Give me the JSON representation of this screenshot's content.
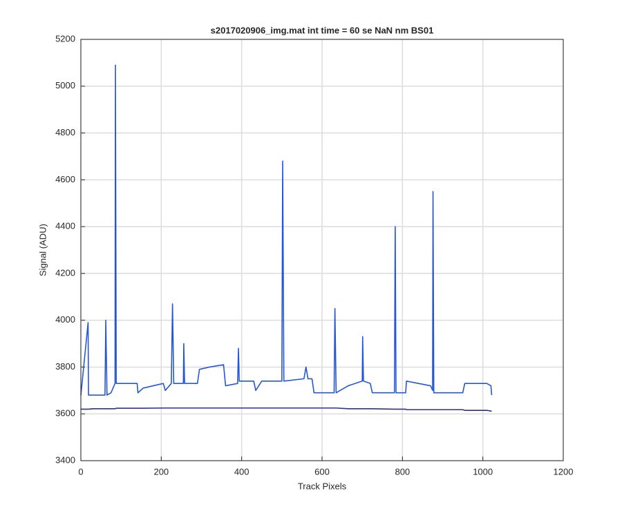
{
  "chart_data": {
    "type": "line",
    "title": "s2017020906_img.mat int time = 60 se  NaN nm BS01",
    "x_label": "Track Pixels",
    "y_label": "Signal (ADU)",
    "x": [
      0,
      18,
      19,
      30,
      60,
      62,
      65,
      75,
      85,
      86,
      88,
      140,
      142,
      155,
      205,
      210,
      225,
      228,
      231,
      255,
      256,
      258,
      290,
      295,
      320,
      355,
      360,
      390,
      392,
      394,
      430,
      435,
      450,
      500,
      502,
      505,
      555,
      560,
      565,
      575,
      580,
      630,
      632,
      635,
      665,
      700,
      701,
      703,
      720,
      725,
      780,
      782,
      784,
      808,
      810,
      870,
      875,
      876,
      878,
      950,
      955,
      1010,
      1020,
      1022
    ],
    "series": [
      {
        "color": "#2457d6",
        "values": [
          3680,
          3990,
          3680,
          3680,
          3680,
          4000,
          3680,
          3690,
          3730,
          5090,
          3730,
          3730,
          3690,
          3710,
          3730,
          3700,
          3730,
          4070,
          3730,
          3730,
          3900,
          3730,
          3730,
          3790,
          3800,
          3810,
          3720,
          3730,
          3880,
          3740,
          3740,
          3700,
          3740,
          3740,
          4680,
          3740,
          3750,
          3800,
          3750,
          3750,
          3690,
          3690,
          4050,
          3690,
          3720,
          3740,
          3930,
          3740,
          3730,
          3690,
          3690,
          4400,
          3690,
          3690,
          3740,
          3720,
          3700,
          4550,
          3690,
          3690,
          3730,
          3730,
          3720,
          3680
        ]
      },
      {
        "color": "#2b2f8f",
        "values": [
          3620,
          3620,
          3620,
          3622,
          3622,
          3622,
          3622,
          3622,
          3622,
          3622,
          3624,
          3624,
          3624,
          3624,
          3625,
          3625,
          3625,
          3625,
          3625,
          3625,
          3625,
          3625,
          3625,
          3625,
          3625,
          3625,
          3625,
          3625,
          3625,
          3625,
          3625,
          3625,
          3625,
          3625,
          3625,
          3625,
          3625,
          3625,
          3625,
          3625,
          3625,
          3625,
          3625,
          3625,
          3622,
          3622,
          3622,
          3622,
          3622,
          3622,
          3620,
          3620,
          3620,
          3620,
          3618,
          3618,
          3618,
          3618,
          3618,
          3618,
          3615,
          3615,
          3612,
          3612
        ]
      }
    ],
    "xlim": [
      0,
      1200
    ],
    "xticks": [
      0,
      200,
      400,
      600,
      800,
      1000,
      1200
    ],
    "ylim": [
      3400,
      5200
    ],
    "yticks": [
      3400,
      3600,
      3800,
      4000,
      4200,
      4400,
      4600,
      4800,
      5000,
      5200
    ],
    "grid": true
  }
}
